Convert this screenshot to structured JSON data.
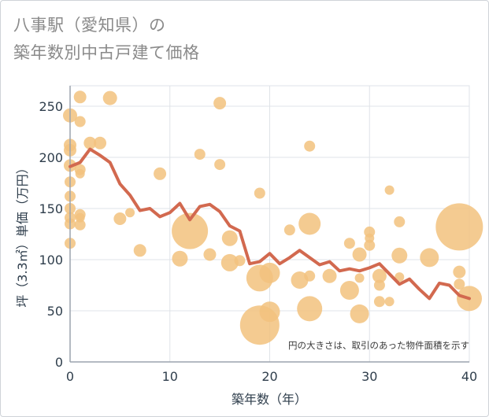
{
  "title": {
    "line1": "八事駅（愛知県）の",
    "line2": "築年数別中古戸建て価格"
  },
  "note": "円の大きさは、取引のあった物件面積を示す",
  "chart_data": {
    "type": "scatter",
    "title": "八事駅（愛知県）の築年数別中古戸建て価格",
    "xlabel": "築年数（年）",
    "ylabel": "坪（3.3㎡）単価（万円）",
    "xlim": [
      0,
      40
    ],
    "ylim": [
      0,
      270
    ],
    "xticks": [
      0,
      10,
      20,
      30,
      40
    ],
    "yticks": [
      0,
      50,
      100,
      150,
      200,
      250
    ],
    "grid": true,
    "colors": {
      "bubble": "#f2c27e",
      "line": "#d2694f",
      "grid": "#dfe3e8",
      "axis": "#9ba3ad"
    },
    "points": [
      {
        "x": 0,
        "y": 241,
        "s": 9
      },
      {
        "x": 0,
        "y": 212,
        "s": 8
      },
      {
        "x": 0,
        "y": 207,
        "s": 8
      },
      {
        "x": 0,
        "y": 192,
        "s": 8
      },
      {
        "x": 0,
        "y": 176,
        "s": 7
      },
      {
        "x": 0,
        "y": 162,
        "s": 7
      },
      {
        "x": 0,
        "y": 150,
        "s": 7
      },
      {
        "x": 0,
        "y": 141,
        "s": 7
      },
      {
        "x": 0,
        "y": 135,
        "s": 7
      },
      {
        "x": 0,
        "y": 116,
        "s": 7
      },
      {
        "x": 1,
        "y": 259,
        "s": 8
      },
      {
        "x": 1,
        "y": 235,
        "s": 7
      },
      {
        "x": 1,
        "y": 188,
        "s": 7
      },
      {
        "x": 1,
        "y": 184,
        "s": 6
      },
      {
        "x": 1,
        "y": 144,
        "s": 7
      },
      {
        "x": 1,
        "y": 141,
        "s": 6
      },
      {
        "x": 1,
        "y": 134,
        "s": 7
      },
      {
        "x": 2,
        "y": 214,
        "s": 8
      },
      {
        "x": 3,
        "y": 214,
        "s": 8
      },
      {
        "x": 4,
        "y": 258,
        "s": 9
      },
      {
        "x": 5,
        "y": 140,
        "s": 8
      },
      {
        "x": 6,
        "y": 146,
        "s": 6
      },
      {
        "x": 7,
        "y": 109,
        "s": 8
      },
      {
        "x": 9,
        "y": 184,
        "s": 8
      },
      {
        "x": 11,
        "y": 101,
        "s": 10
      },
      {
        "x": 12,
        "y": 128,
        "s": 23
      },
      {
        "x": 13,
        "y": 203,
        "s": 7
      },
      {
        "x": 14,
        "y": 105,
        "s": 8
      },
      {
        "x": 15,
        "y": 253,
        "s": 8
      },
      {
        "x": 15,
        "y": 193,
        "s": 7
      },
      {
        "x": 16,
        "y": 121,
        "s": 10
      },
      {
        "x": 16,
        "y": 97,
        "s": 11
      },
      {
        "x": 17,
        "y": 99,
        "s": 7
      },
      {
        "x": 19,
        "y": 165,
        "s": 7
      },
      {
        "x": 19,
        "y": 36,
        "s": 25
      },
      {
        "x": 19,
        "y": 82,
        "s": 17
      },
      {
        "x": 20,
        "y": 87,
        "s": 13
      },
      {
        "x": 20,
        "y": 49,
        "s": 13
      },
      {
        "x": 22,
        "y": 129,
        "s": 7
      },
      {
        "x": 23,
        "y": 80,
        "s": 11
      },
      {
        "x": 24,
        "y": 211,
        "s": 7
      },
      {
        "x": 24,
        "y": 135,
        "s": 14
      },
      {
        "x": 24,
        "y": 84,
        "s": 7
      },
      {
        "x": 24,
        "y": 52,
        "s": 16
      },
      {
        "x": 26,
        "y": 84,
        "s": 9
      },
      {
        "x": 28,
        "y": 116,
        "s": 7
      },
      {
        "x": 28,
        "y": 70,
        "s": 12
      },
      {
        "x": 29,
        "y": 105,
        "s": 9
      },
      {
        "x": 29,
        "y": 82,
        "s": 6
      },
      {
        "x": 29,
        "y": 47,
        "s": 12
      },
      {
        "x": 30,
        "y": 127,
        "s": 7
      },
      {
        "x": 30,
        "y": 121,
        "s": 6
      },
      {
        "x": 30,
        "y": 114,
        "s": 7
      },
      {
        "x": 31,
        "y": 84,
        "s": 9
      },
      {
        "x": 31,
        "y": 75,
        "s": 7
      },
      {
        "x": 31,
        "y": 59,
        "s": 7
      },
      {
        "x": 32,
        "y": 168,
        "s": 6
      },
      {
        "x": 32,
        "y": 59,
        "s": 6
      },
      {
        "x": 33,
        "y": 137,
        "s": 7
      },
      {
        "x": 33,
        "y": 104,
        "s": 10
      },
      {
        "x": 33,
        "y": 83,
        "s": 6
      },
      {
        "x": 36,
        "y": 102,
        "s": 12
      },
      {
        "x": 39,
        "y": 132,
        "s": 30
      },
      {
        "x": 39,
        "y": 88,
        "s": 8
      },
      {
        "x": 39,
        "y": 76,
        "s": 7
      },
      {
        "x": 40,
        "y": 62,
        "s": 16
      }
    ],
    "line": {
      "x": [
        0,
        1,
        2,
        3,
        4,
        5,
        6,
        7,
        8,
        9,
        10,
        11,
        12,
        13,
        14,
        15,
        16,
        17,
        18,
        19,
        20,
        21,
        22,
        23,
        24,
        25,
        26,
        27,
        28,
        29,
        30,
        31,
        32,
        33,
        34,
        35,
        36,
        37,
        38,
        39,
        40
      ],
      "y": [
        191,
        195,
        208,
        202,
        195,
        174,
        163,
        148,
        150,
        142,
        146,
        155,
        139,
        152,
        154,
        147,
        133,
        128,
        96,
        98,
        106,
        96,
        102,
        109,
        102,
        95,
        98,
        89,
        91,
        89,
        92,
        96,
        86,
        76,
        81,
        71,
        62,
        77,
        75,
        65,
        62
      ]
    }
  }
}
